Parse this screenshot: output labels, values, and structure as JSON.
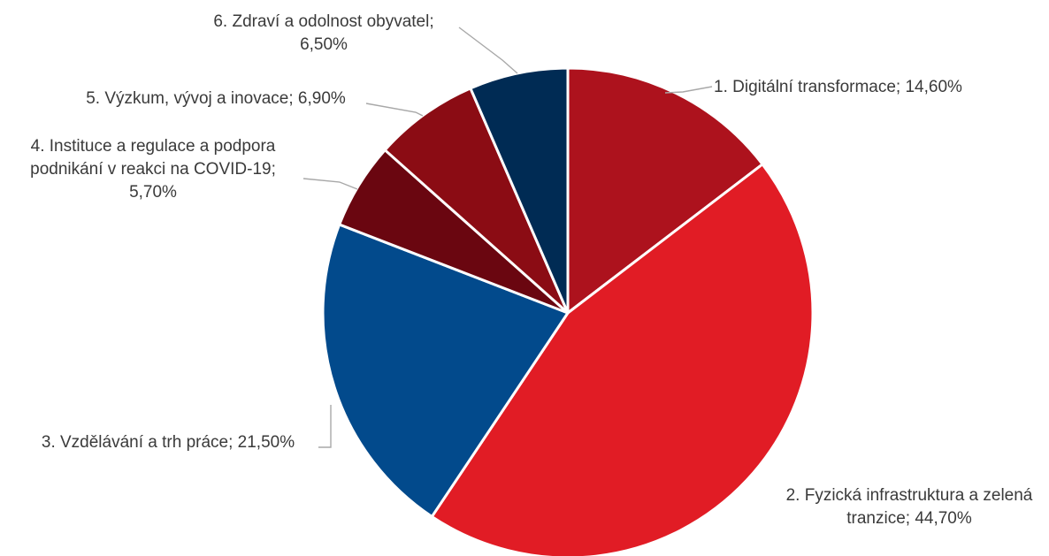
{
  "chart_data": {
    "type": "pie",
    "title": "",
    "start_angle_deg": 0,
    "direction": "clockwise",
    "slices": [
      {
        "label": "1. Digitální transformace; 14,60%",
        "category": "1. Digitální transformace",
        "value": 14.6,
        "color": "#ad121d"
      },
      {
        "label": "2. Fyzická infrastruktura a zelená tranzice; 44,70%",
        "category": "2. Fyzická infrastruktura a zelená tranzice",
        "value": 44.7,
        "color": "#e11c25"
      },
      {
        "label": "3. Vzdělávání a trh práce; 21,50%",
        "category": "3. Vzdělávání a trh práce",
        "value": 21.5,
        "color": "#024a8c"
      },
      {
        "label": "4. Instituce a regulace a podpora podnikání v reakci na COVID-19; 5,70%",
        "category": "4. Instituce a regulace a podpora podnikání v reakci na COVID-19",
        "value": 5.7,
        "color": "#6a0610"
      },
      {
        "label": "5. Výzkum, vývoj a inovace; 6,90%",
        "category": "5. Výzkum, vývoj a inovace",
        "value": 6.9,
        "color": "#8b0c14"
      },
      {
        "label": "6. Zdraví a odolnost obyvatel; 6,50%",
        "category": "6. Zdraví a odolnost obyvatel",
        "value": 6.5,
        "color": "#002b54"
      }
    ],
    "legend": "none",
    "data_labels": "outside-with-leaders"
  }
}
